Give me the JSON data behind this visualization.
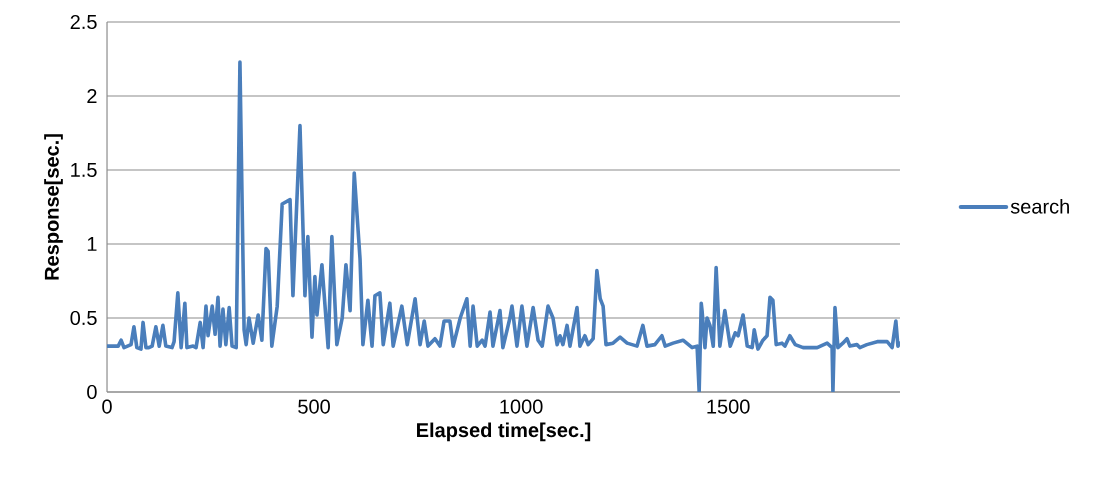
{
  "chart_data": {
    "type": "line",
    "xlabel": "Elapsed time[sec.]",
    "ylabel": "Response[sec.]",
    "xlim": [
      0,
      1915
    ],
    "xticks": [
      0,
      500,
      1000,
      1500
    ],
    "ylim": [
      0,
      2.5
    ],
    "yticks": [
      0,
      0.5,
      1,
      1.5,
      2,
      2.5
    ],
    "grid": "y",
    "legend": "right",
    "marker": "none",
    "line_style": "solid",
    "series": [
      {
        "name": "search",
        "color": "#4a7ebb",
        "x": [
          0,
          27,
          34,
          41,
          58,
          65,
          72,
          82,
          87,
          94,
          101,
          109,
          118,
          126,
          135,
          142,
          157,
          162,
          171,
          179,
          188,
          193,
          208,
          215,
          225,
          232,
          239,
          244,
          254,
          261,
          268,
          273,
          280,
          287,
          295,
          302,
          312,
          321,
          331,
          336,
          343,
          353,
          365,
          374,
          384,
          389,
          398,
          411,
          423,
          442,
          449,
          466,
          478,
          485,
          495,
          502,
          507,
          519,
          534,
          543,
          555,
          568,
          577,
          587,
          597,
          611,
          618,
          630,
          640,
          647,
          659,
          667,
          683,
          691,
          712,
          725,
          744,
          756,
          766,
          775,
          792,
          804,
          814,
          828,
          836,
          853,
          869,
          877,
          884,
          894,
          906,
          913,
          925,
          932,
          949,
          956,
          973,
          978,
          990,
          1002,
          1014,
          1029,
          1041,
          1051,
          1065,
          1077,
          1087,
          1094,
          1101,
          1111,
          1118,
          1135,
          1142,
          1154,
          1162,
          1174,
          1183,
          1191,
          1198,
          1205,
          1222,
          1239,
          1256,
          1280,
          1294,
          1304,
          1323,
          1340,
          1348,
          1367,
          1391,
          1413,
          1425,
          1430,
          1435,
          1437,
          1444,
          1449,
          1456,
          1464,
          1471,
          1480,
          1492,
          1505,
          1517,
          1524,
          1536,
          1546,
          1558,
          1563,
          1572,
          1584,
          1594,
          1601,
          1608,
          1616,
          1630,
          1637,
          1649,
          1662,
          1681,
          1715,
          1739,
          1751,
          1753,
          1758,
          1765,
          1777,
          1787,
          1794,
          1811,
          1818,
          1835,
          1860,
          1884,
          1896,
          1905,
          1910,
          1915
        ],
        "values": [
          0.31,
          0.31,
          0.35,
          0.3,
          0.32,
          0.44,
          0.3,
          0.29,
          0.47,
          0.3,
          0.3,
          0.31,
          0.44,
          0.31,
          0.45,
          0.31,
          0.3,
          0.34,
          0.67,
          0.3,
          0.6,
          0.3,
          0.31,
          0.3,
          0.47,
          0.3,
          0.58,
          0.38,
          0.58,
          0.39,
          0.64,
          0.31,
          0.56,
          0.32,
          0.57,
          0.31,
          0.3,
          2.23,
          0.42,
          0.32,
          0.5,
          0.33,
          0.52,
          0.35,
          0.97,
          0.95,
          0.31,
          0.58,
          1.27,
          1.3,
          0.65,
          1.8,
          0.65,
          1.05,
          0.37,
          0.78,
          0.52,
          0.86,
          0.3,
          1.05,
          0.32,
          0.5,
          0.86,
          0.55,
          1.48,
          0.9,
          0.32,
          0.62,
          0.31,
          0.65,
          0.67,
          0.32,
          0.6,
          0.31,
          0.58,
          0.32,
          0.63,
          0.32,
          0.48,
          0.31,
          0.36,
          0.31,
          0.48,
          0.48,
          0.31,
          0.5,
          0.63,
          0.31,
          0.58,
          0.31,
          0.35,
          0.31,
          0.54,
          0.31,
          0.55,
          0.3,
          0.5,
          0.58,
          0.31,
          0.58,
          0.31,
          0.57,
          0.35,
          0.31,
          0.58,
          0.5,
          0.32,
          0.38,
          0.32,
          0.45,
          0.31,
          0.57,
          0.31,
          0.38,
          0.32,
          0.36,
          0.82,
          0.63,
          0.58,
          0.32,
          0.33,
          0.37,
          0.33,
          0.31,
          0.45,
          0.31,
          0.32,
          0.38,
          0.31,
          0.33,
          0.35,
          0.3,
          0.31,
          0.0,
          0.6,
          0.55,
          0.3,
          0.5,
          0.45,
          0.31,
          0.84,
          0.31,
          0.55,
          0.31,
          0.4,
          0.38,
          0.52,
          0.31,
          0.3,
          0.42,
          0.29,
          0.35,
          0.38,
          0.64,
          0.62,
          0.32,
          0.33,
          0.31,
          0.38,
          0.32,
          0.3,
          0.3,
          0.33,
          0.3,
          0.0,
          0.57,
          0.3,
          0.33,
          0.36,
          0.31,
          0.32,
          0.3,
          0.32,
          0.34,
          0.34,
          0.3,
          0.48,
          0.31,
          0.33
        ]
      }
    ]
  }
}
